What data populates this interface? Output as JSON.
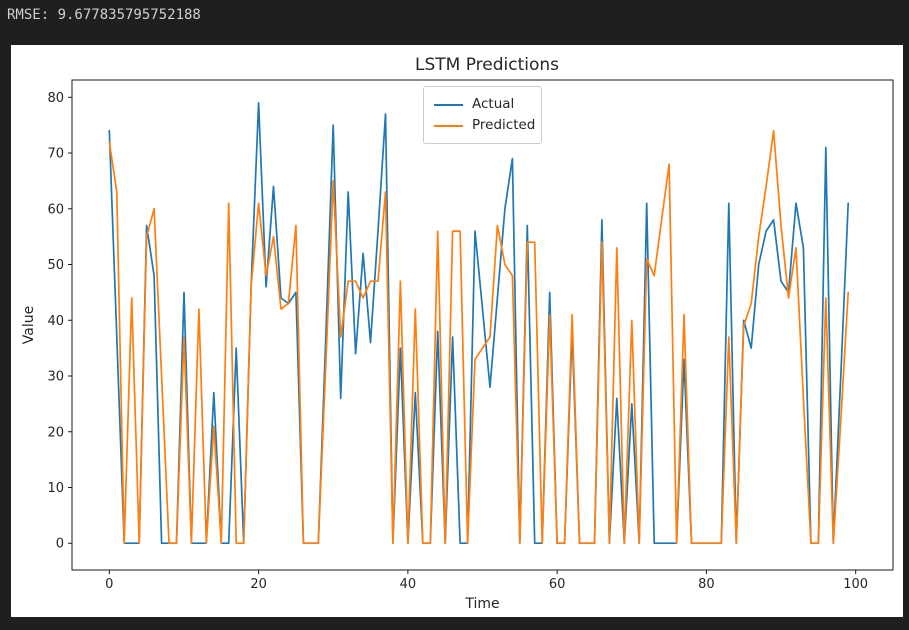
{
  "terminal": {
    "rmse_line": "RMSE: 9.677835795752188"
  },
  "colors": {
    "page_background": "#1f1f1f",
    "terminal_text": "#cfcfcf",
    "figure_background": "#ffffff",
    "axis_text": "#262626",
    "spine": "#1a1a1a",
    "actual": "#1f77b4",
    "predicted": "#ff7f0e"
  },
  "chart_data": {
    "type": "line",
    "title": "LSTM Predictions",
    "xlabel": "Time",
    "ylabel": "Value",
    "grid": false,
    "legend_position": "upper center",
    "x_ticks": [
      0,
      20,
      40,
      60,
      80,
      100
    ],
    "y_ticks": [
      0,
      10,
      20,
      30,
      40,
      50,
      60,
      70,
      80
    ],
    "xlim": [
      -5,
      105
    ],
    "ylim": [
      -4.8,
      83.1
    ],
    "x_start": 0,
    "x_step": 1,
    "n_points": 100,
    "series": [
      {
        "name": "Actual",
        "color": "#1f77b4",
        "values": [
          74,
          37,
          0,
          0,
          0,
          57,
          48,
          0,
          0,
          0,
          45,
          0,
          0,
          0,
          27,
          0,
          0,
          35,
          0,
          46,
          79,
          46,
          64,
          44,
          43,
          45,
          0,
          0,
          0,
          37,
          75,
          26,
          63,
          34,
          52,
          36,
          56,
          77,
          0,
          35,
          0,
          27,
          0,
          0,
          38,
          0,
          37,
          0,
          0,
          56,
          42,
          28,
          44,
          60,
          69,
          0,
          57,
          0,
          0,
          45,
          0,
          0,
          38,
          0,
          0,
          0,
          58,
          0,
          26,
          0,
          25,
          0,
          61,
          0,
          0,
          0,
          0,
          33,
          0,
          0,
          0,
          0,
          0,
          61,
          0,
          40,
          35,
          50,
          56,
          58,
          47,
          45,
          61,
          53,
          0,
          0,
          71,
          0,
          30,
          61
        ]
      },
      {
        "name": "Predicted",
        "color": "#ff7f0e",
        "values": [
          72,
          63,
          0,
          44,
          0,
          55,
          60,
          30,
          0,
          0,
          37,
          0,
          42,
          0,
          21,
          0,
          61,
          0,
          0,
          46,
          61,
          48,
          55,
          42,
          43,
          57,
          0,
          0,
          0,
          32,
          65,
          37,
          47,
          47,
          44,
          47,
          47,
          63,
          0,
          47,
          0,
          42,
          0,
          0,
          56,
          0,
          56,
          56,
          0,
          33,
          35,
          37,
          57,
          50,
          48,
          0,
          54,
          54,
          0,
          41,
          0,
          0,
          41,
          0,
          0,
          0,
          54,
          0,
          53,
          0,
          40,
          0,
          51,
          48,
          58,
          68,
          0,
          41,
          0,
          0,
          0,
          0,
          0,
          37,
          0,
          39,
          43,
          55,
          64,
          74,
          57,
          44,
          53,
          26,
          0,
          0,
          44,
          0,
          22,
          45
        ]
      }
    ]
  }
}
